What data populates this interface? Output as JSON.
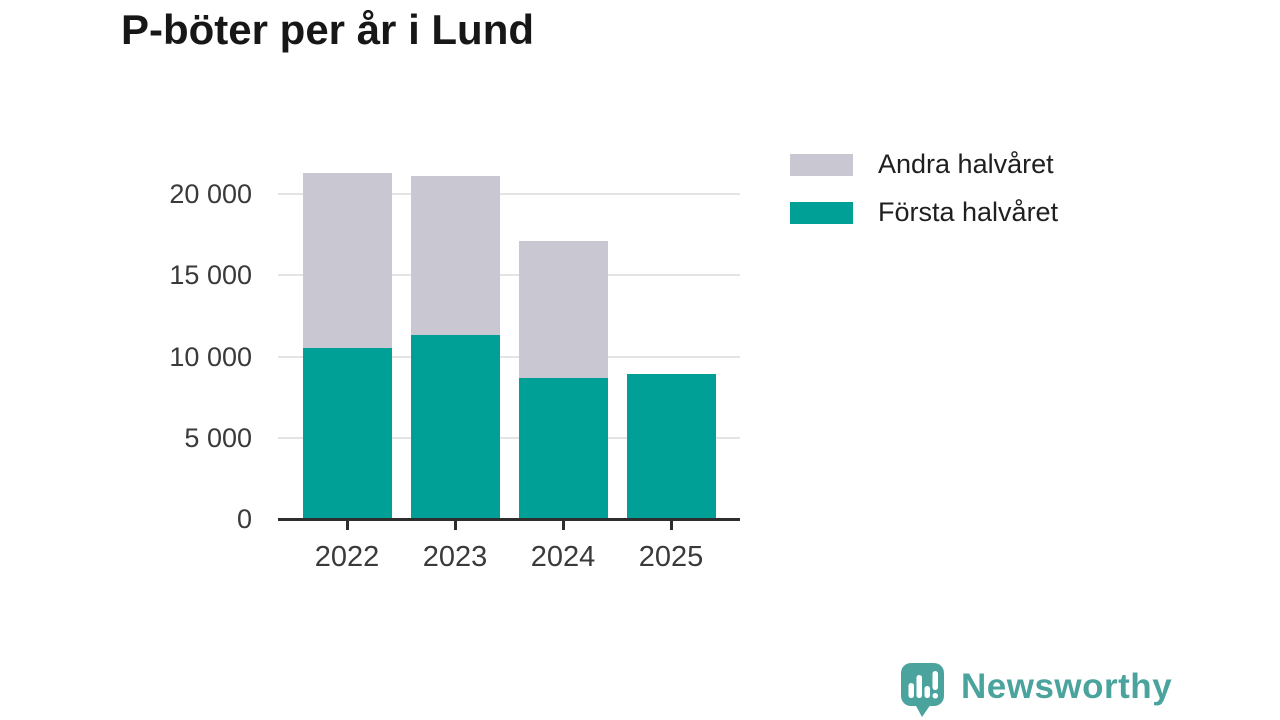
{
  "title": "P-böter per år i Lund",
  "legend": [
    {
      "label": "Andra halvåret",
      "color": "#c9c8d2"
    },
    {
      "label": "Första halvåret",
      "color": "#00a096"
    }
  ],
  "chart_data": {
    "type": "bar",
    "stacked": true,
    "title": "P-böter per år i Lund",
    "categories": [
      "2022",
      "2023",
      "2024",
      "2025"
    ],
    "series": [
      {
        "name": "Första halvåret",
        "color": "#00a096",
        "values": [
          10500,
          11350,
          8700,
          8900
        ]
      },
      {
        "name": "Andra halvåret",
        "color": "#c9c8d2",
        "values": [
          10800,
          9750,
          8400,
          0
        ]
      }
    ],
    "totals": [
      21300,
      21100,
      17100,
      8900
    ],
    "xlabel": "",
    "ylabel": "",
    "ylim": [
      0,
      22000
    ],
    "yticks": [
      0,
      5000,
      10000,
      15000,
      20000
    ],
    "ytick_labels": [
      "0",
      "5 000",
      "10 000",
      "15 000",
      "20 000"
    ],
    "grid": true,
    "legend_position": "top-right"
  },
  "branding": {
    "logo_text": "Newsworthy",
    "logo_color": "#4ba39d",
    "logo_icon": "bar-chart-speech-bubble-icon"
  }
}
